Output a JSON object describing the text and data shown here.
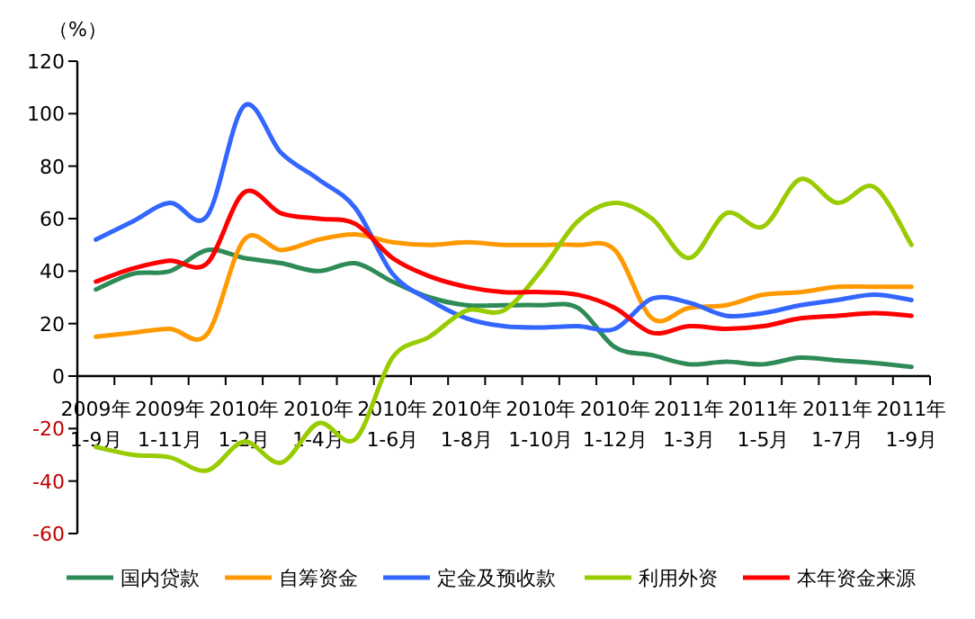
{
  "chart_data": {
    "type": "line",
    "ylabel": "（%）",
    "legend": "bottom",
    "grid": false,
    "marker": "none",
    "line_style": "solid",
    "categories": [
      "2009年 1-9月",
      null,
      "2009年 1-11月",
      null,
      "2010年 1-2月",
      null,
      "2010年 1-4月",
      null,
      "2010年 1-6月",
      null,
      "2010年 1-8月",
      null,
      "2010年 1-10月",
      null,
      "2010年 1-12月",
      null,
      "2011年 1-3月",
      null,
      "2011年 1-5月",
      null,
      "2011年 1-7月",
      null,
      "2011年 1-9月"
    ],
    "ylim": [
      -60,
      120
    ],
    "yticks": [
      -60,
      -40,
      -20,
      0,
      20,
      40,
      60,
      80,
      100,
      120
    ],
    "series": [
      {
        "name": "国内贷款",
        "color": "#2e8b57",
        "values": [
          33,
          39,
          40,
          48,
          45,
          43,
          40,
          43,
          36,
          30,
          27,
          27,
          27,
          26,
          11,
          8,
          4.5,
          5.5,
          4.5,
          7,
          6,
          5,
          3.5
        ]
      },
      {
        "name": "自筹资金",
        "color": "#ff9900",
        "values": [
          15,
          16.5,
          18,
          16,
          52,
          48,
          52,
          54,
          51,
          50,
          51,
          50,
          50,
          50,
          48,
          22,
          26,
          27,
          31,
          32,
          34,
          34,
          34
        ]
      },
      {
        "name": "定金及预收款",
        "color": "#3366ff",
        "values": [
          52,
          59,
          66,
          61,
          103,
          85,
          75,
          64,
          39,
          29,
          22,
          19,
          18.5,
          19,
          18,
          29.5,
          28,
          23,
          24,
          27,
          29,
          31,
          29
        ]
      },
      {
        "name": "利用外资",
        "color": "#99cc00",
        "values": [
          -27,
          -30,
          -31,
          -36,
          -25,
          -33,
          -18,
          -24,
          7,
          15,
          25,
          25,
          40,
          59,
          66,
          60,
          45,
          62,
          57,
          75,
          66,
          72,
          50
        ]
      },
      {
        "name": "本年资金来源",
        "color": "#ff0000",
        "values": [
          36,
          41,
          44,
          43,
          70,
          62,
          60,
          58,
          45,
          38,
          34,
          32,
          32,
          31,
          26,
          16.5,
          19,
          18,
          19,
          22,
          23,
          24,
          23
        ]
      }
    ]
  }
}
